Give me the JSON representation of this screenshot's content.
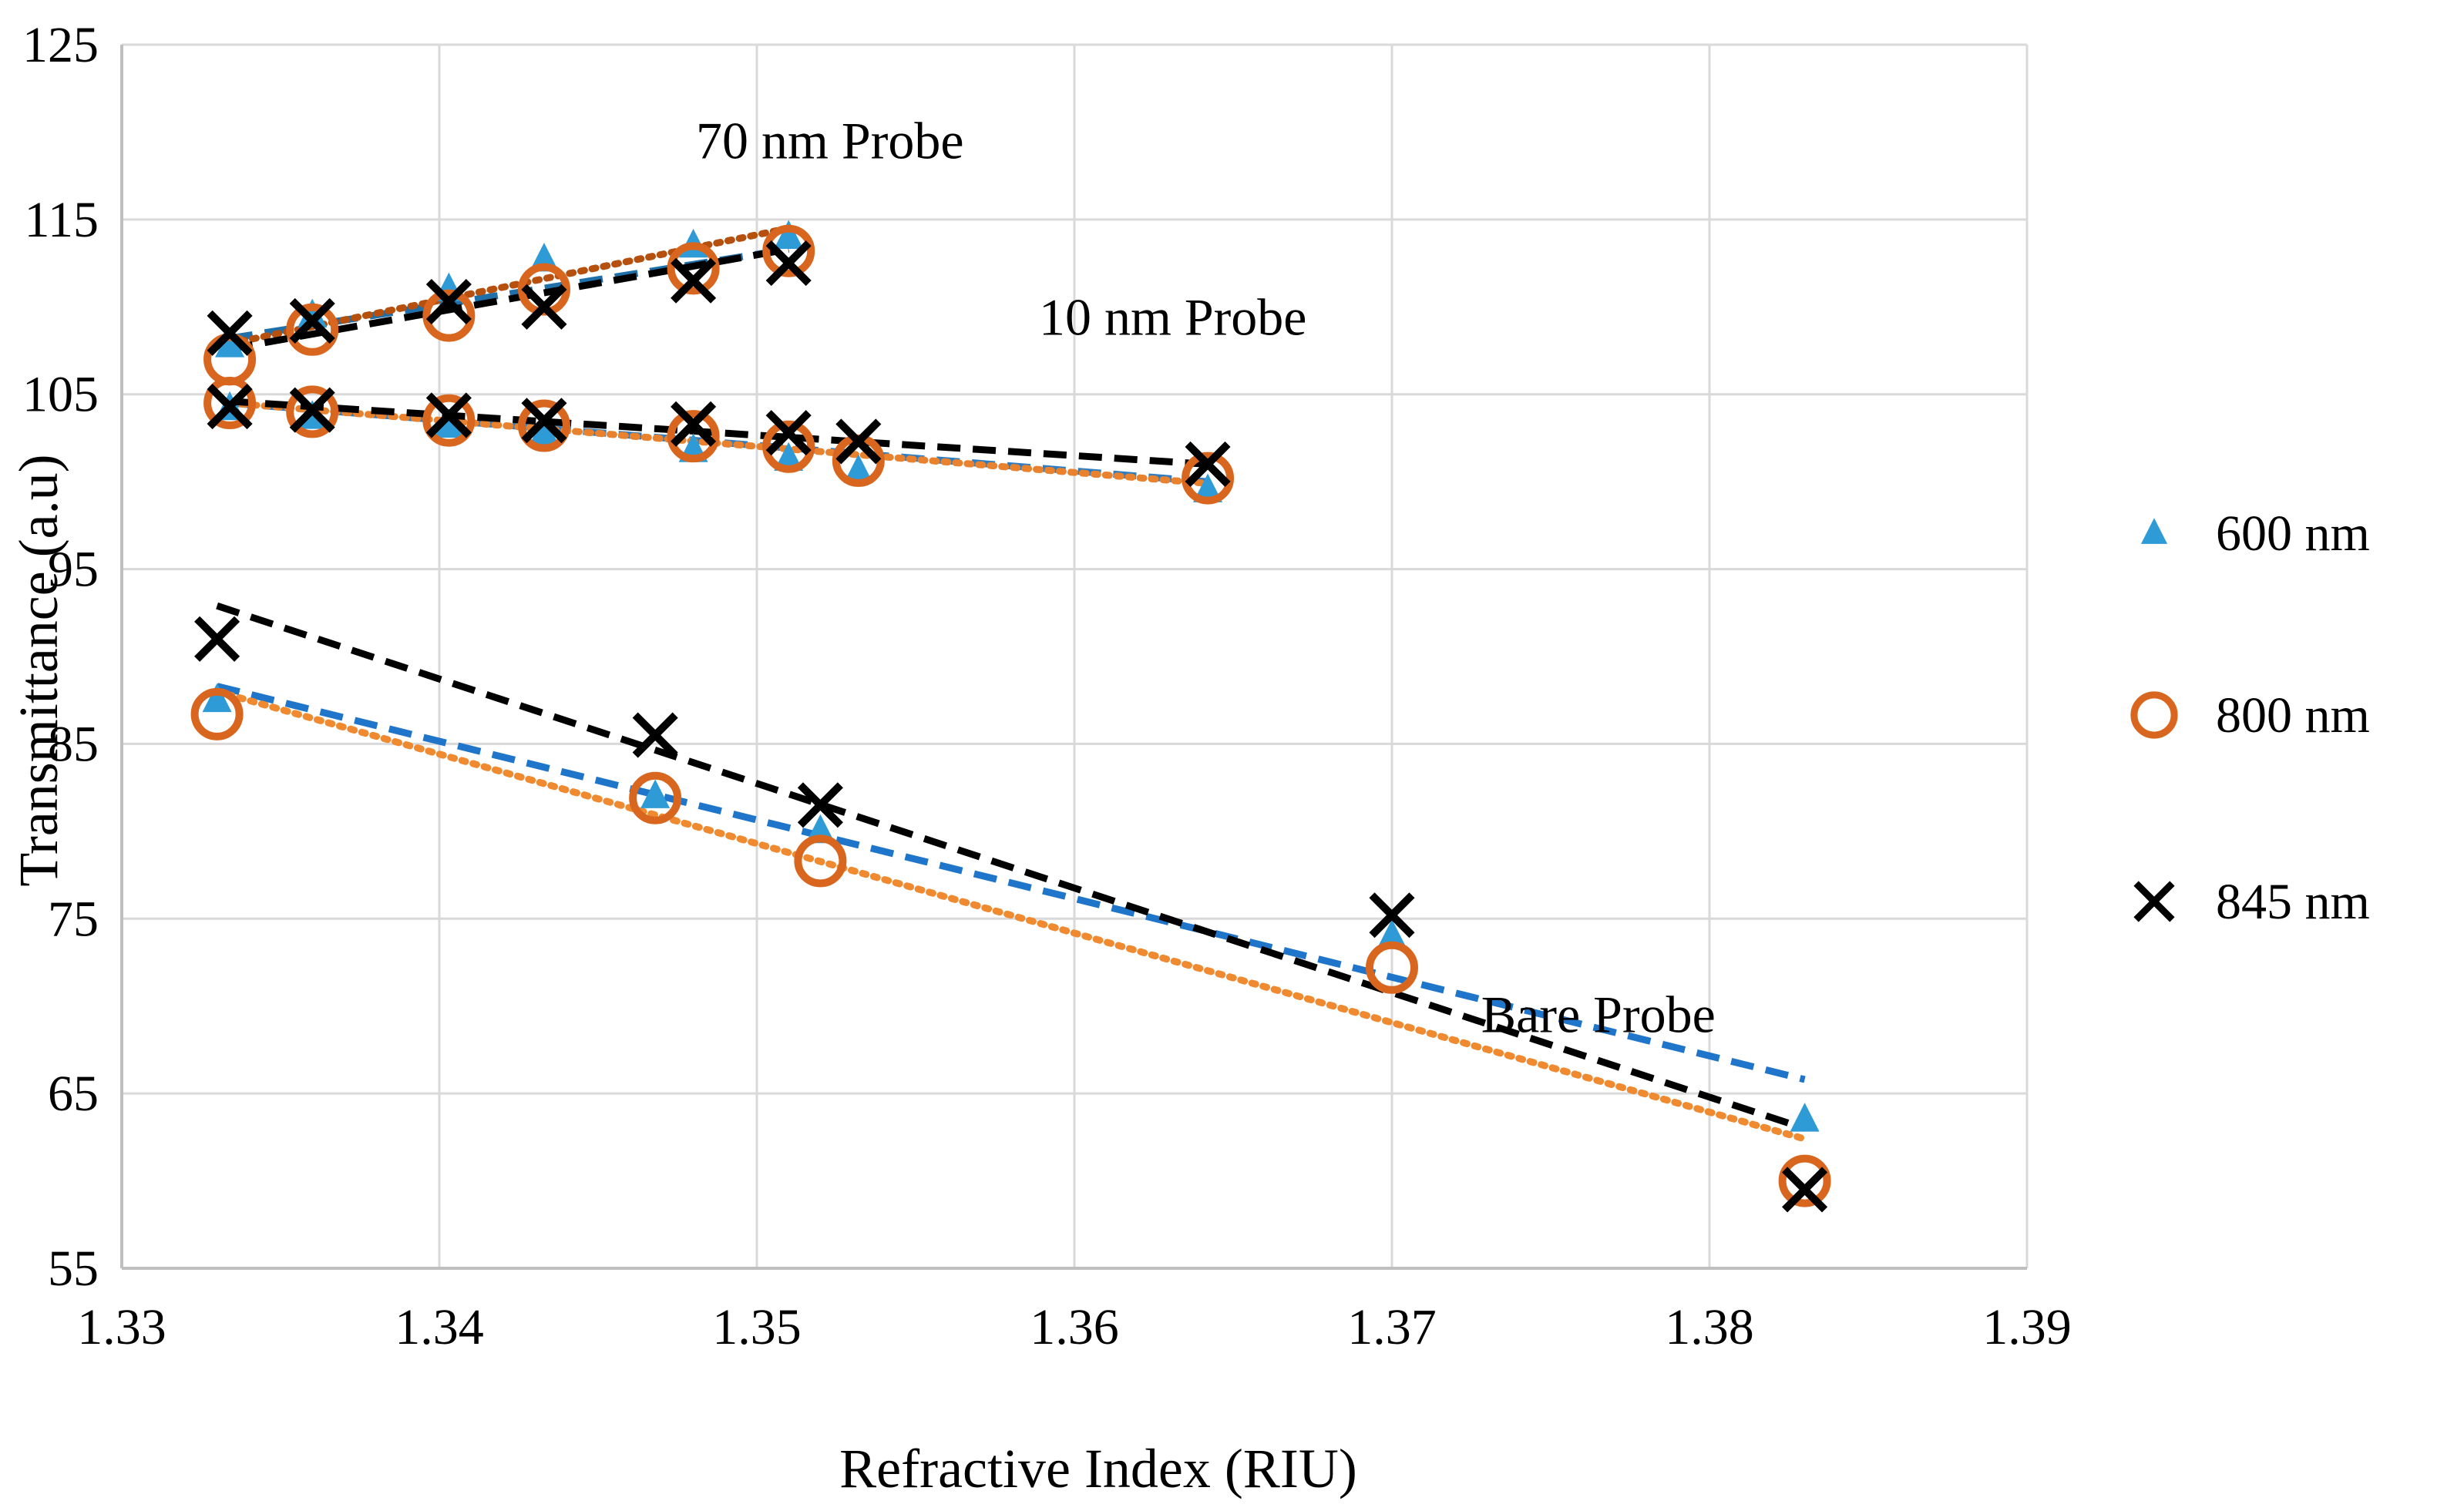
{
  "chart_data": {
    "type": "scatter",
    "xlabel": "Refractive Index (RIU)",
    "ylabel": "Transmittance (a.u)",
    "xlim": [
      1.33,
      1.39
    ],
    "ylim": [
      55,
      125
    ],
    "xticks": [
      1.33,
      1.34,
      1.35,
      1.36,
      1.37,
      1.38,
      1.39
    ],
    "xtick_labels": [
      "1.33",
      "1.34",
      "1.35",
      "1.36",
      "1.37",
      "1.38",
      "1.39"
    ],
    "yticks": [
      55,
      65,
      75,
      85,
      95,
      105,
      115,
      125
    ],
    "ytick_labels": [
      "55",
      "65",
      "75",
      "85",
      "95",
      "105",
      "115",
      "125"
    ],
    "grid": true,
    "legend_position": "right",
    "legend": [
      {
        "label": "600 nm",
        "marker": "triangle",
        "color": "#2E9BD6"
      },
      {
        "label": "800 nm",
        "marker": "circle",
        "color": "#D9661F"
      },
      {
        "label": "845 nm",
        "marker": "x",
        "color": "#000000"
      }
    ],
    "annotations": [
      {
        "text": "70 nm Probe",
        "x": 1.3523,
        "y": 118.5
      },
      {
        "text": "10 nm Probe",
        "x": 1.3631,
        "y": 108.4
      },
      {
        "text": "Bare Probe",
        "x": 1.3765,
        "y": 68.5
      }
    ],
    "groups": [
      {
        "name": "70 nm Probe",
        "series": [
          {
            "name": "600 nm",
            "x": [
              1.3334,
              1.336,
              1.3403,
              1.3433,
              1.348,
              1.351
            ],
            "y": [
              107.8,
              109.5,
              111.0,
              112.7,
              113.5,
              114.0
            ]
          },
          {
            "name": "800 nm",
            "x": [
              1.3334,
              1.336,
              1.3403,
              1.3433,
              1.348,
              1.351
            ],
            "y": [
              107.0,
              108.7,
              109.5,
              111.0,
              112.2,
              113.2
            ]
          },
          {
            "name": "845 nm",
            "x": [
              1.3334,
              1.336,
              1.3403,
              1.3433,
              1.348,
              1.351
            ],
            "y": [
              108.5,
              109.2,
              110.3,
              110.0,
              111.5,
              112.5
            ]
          }
        ],
        "trendlines": [
          {
            "series": "600 nm",
            "x": [
              1.3334,
              1.351
            ],
            "y": [
              108.2,
              113.3
            ],
            "style": "dashed",
            "color": "#1F6FA8"
          },
          {
            "series": "800 nm",
            "x": [
              1.3334,
              1.351
            ],
            "y": [
              107.9,
              114.5
            ],
            "style": "dotted",
            "color": "#B5500F"
          },
          {
            "series": "845 nm",
            "x": [
              1.3334,
              1.351
            ],
            "y": [
              107.6,
              113.3
            ],
            "style": "dashed",
            "color": "#000000"
          }
        ]
      },
      {
        "name": "10 nm Probe",
        "series": [
          {
            "name": "600 nm",
            "x": [
              1.3334,
              1.336,
              1.3403,
              1.3433,
              1.348,
              1.351,
              1.3532,
              1.3642
            ],
            "y": [
              104.2,
              103.7,
              103.2,
              102.8,
              101.8,
              101.3,
              100.6,
              99.5
            ]
          },
          {
            "name": "800 nm",
            "x": [
              1.3334,
              1.336,
              1.3403,
              1.3433,
              1.348,
              1.351,
              1.3532,
              1.3642
            ],
            "y": [
              104.5,
              104.0,
              103.5,
              103.2,
              102.6,
              102.0,
              101.2,
              100.2
            ]
          },
          {
            "name": "845 nm",
            "x": [
              1.3334,
              1.336,
              1.3403,
              1.3433,
              1.348,
              1.351,
              1.3532,
              1.3642
            ],
            "y": [
              104.3,
              104.1,
              103.8,
              103.5,
              103.3,
              102.8,
              102.3,
              101.0
            ]
          }
        ],
        "trendlines": [
          {
            "series": "600 nm",
            "x": [
              1.3334,
              1.3642
            ],
            "y": [
              104.5,
              100.0
            ],
            "style": "dashed",
            "color": "#2E7DC2"
          },
          {
            "series": "800 nm",
            "x": [
              1.3334,
              1.3642
            ],
            "y": [
              104.5,
              99.9
            ],
            "style": "dotted",
            "color": "#E8822E"
          },
          {
            "series": "845 nm",
            "x": [
              1.3334,
              1.3642
            ],
            "y": [
              104.6,
              101.0
            ],
            "style": "dashed",
            "color": "#000000"
          }
        ]
      },
      {
        "name": "Bare Probe",
        "series": [
          {
            "name": "600 nm",
            "x": [
              1.333,
              1.3468,
              1.352,
              1.37,
              1.383
            ],
            "y": [
              87.5,
              82.0,
              80.0,
              74.0,
              63.5
            ]
          },
          {
            "name": "800 nm",
            "x": [
              1.333,
              1.3468,
              1.352,
              1.37,
              1.383
            ],
            "y": [
              86.7,
              81.9,
              78.3,
              72.2,
              60.0
            ]
          },
          {
            "name": "845 nm",
            "x": [
              1.333,
              1.3468,
              1.352,
              1.37,
              1.383
            ],
            "y": [
              91.0,
              85.5,
              81.5,
              75.2,
              59.5
            ]
          }
        ],
        "trendlines": [
          {
            "series": "600 nm",
            "x": [
              1.333,
              1.383
            ],
            "y": [
              88.3,
              65.8
            ],
            "style": "dashed",
            "color": "#1F75C9"
          },
          {
            "series": "800 nm",
            "x": [
              1.333,
              1.383
            ],
            "y": [
              88.0,
              62.4
            ],
            "style": "dotted",
            "color": "#F08A30"
          },
          {
            "series": "845 nm",
            "x": [
              1.333,
              1.383
            ],
            "y": [
              92.9,
              63.0
            ],
            "style": "dashed",
            "color": "#000000"
          }
        ]
      }
    ]
  }
}
